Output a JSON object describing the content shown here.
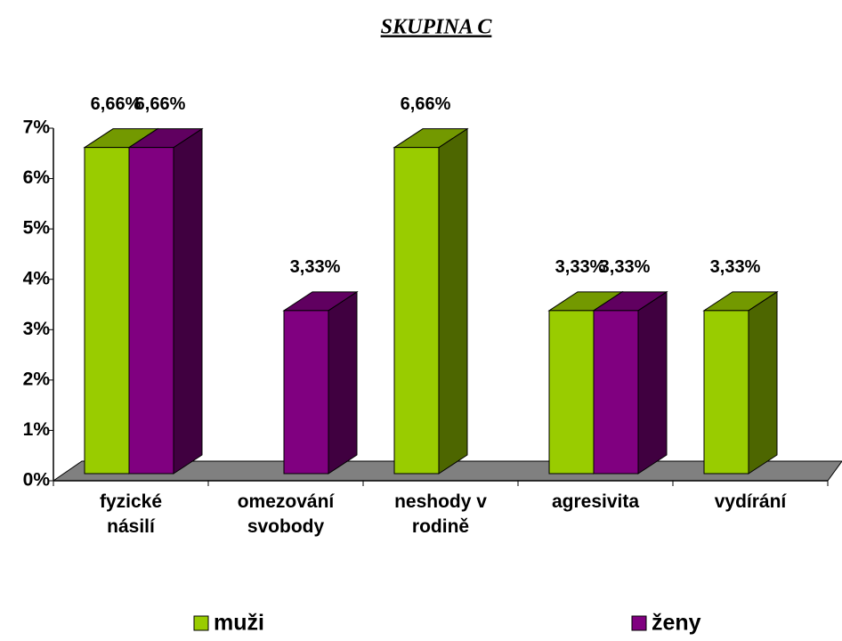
{
  "chart_data": {
    "type": "bar3d",
    "title": "SKUPINA C",
    "categories": [
      "fyzické násilí",
      "omezování svobody",
      "neshody v rodině",
      "agresivita",
      "vydírání"
    ],
    "series": [
      {
        "name": "muži",
        "color": "#99cc00",
        "values": [
          6.66,
          null,
          6.66,
          3.33,
          3.33
        ],
        "value_labels": [
          "6,66%",
          null,
          "6,66%",
          "3,33%",
          "3,33%"
        ]
      },
      {
        "name": "ženy",
        "color": "#800080",
        "values": [
          6.66,
          3.33,
          null,
          3.33,
          null
        ],
        "value_labels": [
          "6,66%",
          "3,33%",
          null,
          "3,33%",
          null
        ]
      }
    ],
    "ylim": [
      0,
      7
    ],
    "yticks": [
      {
        "value": 0,
        "label": "0%"
      },
      {
        "value": 1,
        "label": "1%"
      },
      {
        "value": 2,
        "label": "2%"
      },
      {
        "value": 3,
        "label": "3%"
      },
      {
        "value": 4,
        "label": "4%"
      },
      {
        "value": 5,
        "label": "5%"
      },
      {
        "value": 6,
        "label": "6%"
      },
      {
        "value": 7,
        "label": "7%"
      }
    ],
    "legend": "bottom"
  }
}
